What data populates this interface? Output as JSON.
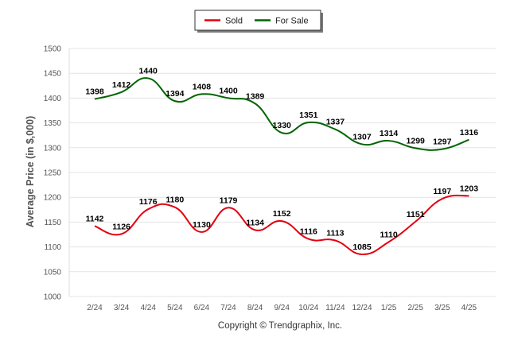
{
  "chart_data": {
    "type": "line",
    "categories": [
      "2/24",
      "3/24",
      "4/24",
      "5/24",
      "6/24",
      "7/24",
      "8/24",
      "9/24",
      "10/24",
      "11/24",
      "12/24",
      "1/25",
      "2/25",
      "3/25",
      "4/25"
    ],
    "series": [
      {
        "name": "Sold",
        "color": "#e3000f",
        "values": [
          1142,
          1126,
          1176,
          1180,
          1130,
          1179,
          1134,
          1152,
          1116,
          1113,
          1085,
          1110,
          1151,
          1197,
          1203
        ]
      },
      {
        "name": "For Sale",
        "color": "#006400",
        "values": [
          1398,
          1412,
          1440,
          1394,
          1408,
          1400,
          1389,
          1330,
          1351,
          1337,
          1307,
          1314,
          1299,
          1297,
          1316
        ]
      }
    ],
    "ylabel": "Average Price (in $,000)",
    "xlabel": "",
    "ylim": [
      1000,
      1500
    ],
    "yticks": [
      1000,
      1050,
      1100,
      1150,
      1200,
      1250,
      1300,
      1350,
      1400,
      1450,
      1500
    ],
    "grid": "horizontal",
    "legend_position": "top-center"
  },
  "footer": {
    "copyright": "Copyright © Trendgraphix, Inc."
  }
}
